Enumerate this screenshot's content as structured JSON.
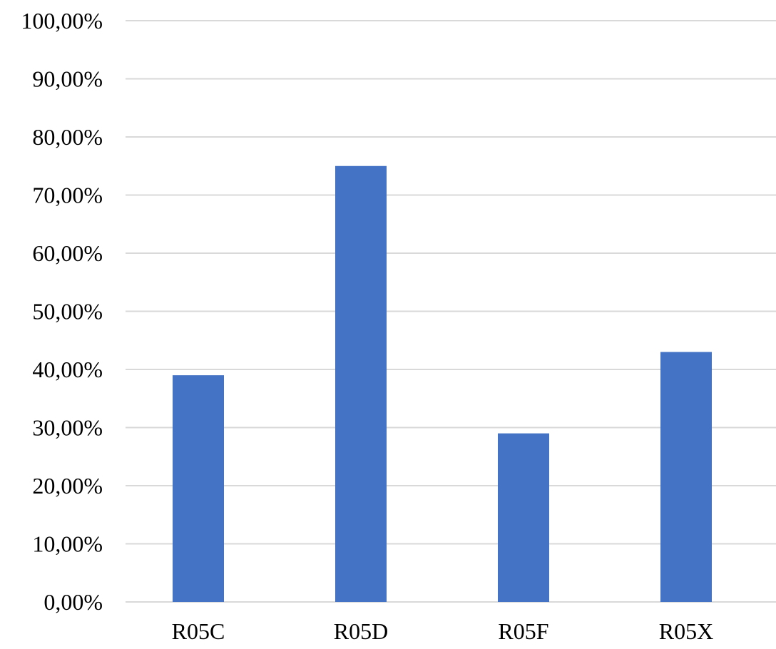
{
  "chart_data": {
    "type": "bar",
    "categories": [
      "R05C",
      "R05D",
      "R05F",
      "R05X"
    ],
    "values": [
      39.0,
      75.0,
      29.0,
      43.0
    ],
    "y_tick_labels": [
      "0,00%",
      "10,00%",
      "20,00%",
      "30,00%",
      "40,00%",
      "50,00%",
      "60,00%",
      "70,00%",
      "80,00%",
      "90,00%",
      "100,00%"
    ],
    "y_ticks": [
      0,
      10,
      20,
      30,
      40,
      50,
      60,
      70,
      80,
      90,
      100
    ],
    "ylim": [
      0,
      100
    ],
    "grid": true,
    "legend": "none",
    "colors": {
      "bar": "#4472c4",
      "grid": "#d9d9d9",
      "text": "#000000"
    }
  }
}
